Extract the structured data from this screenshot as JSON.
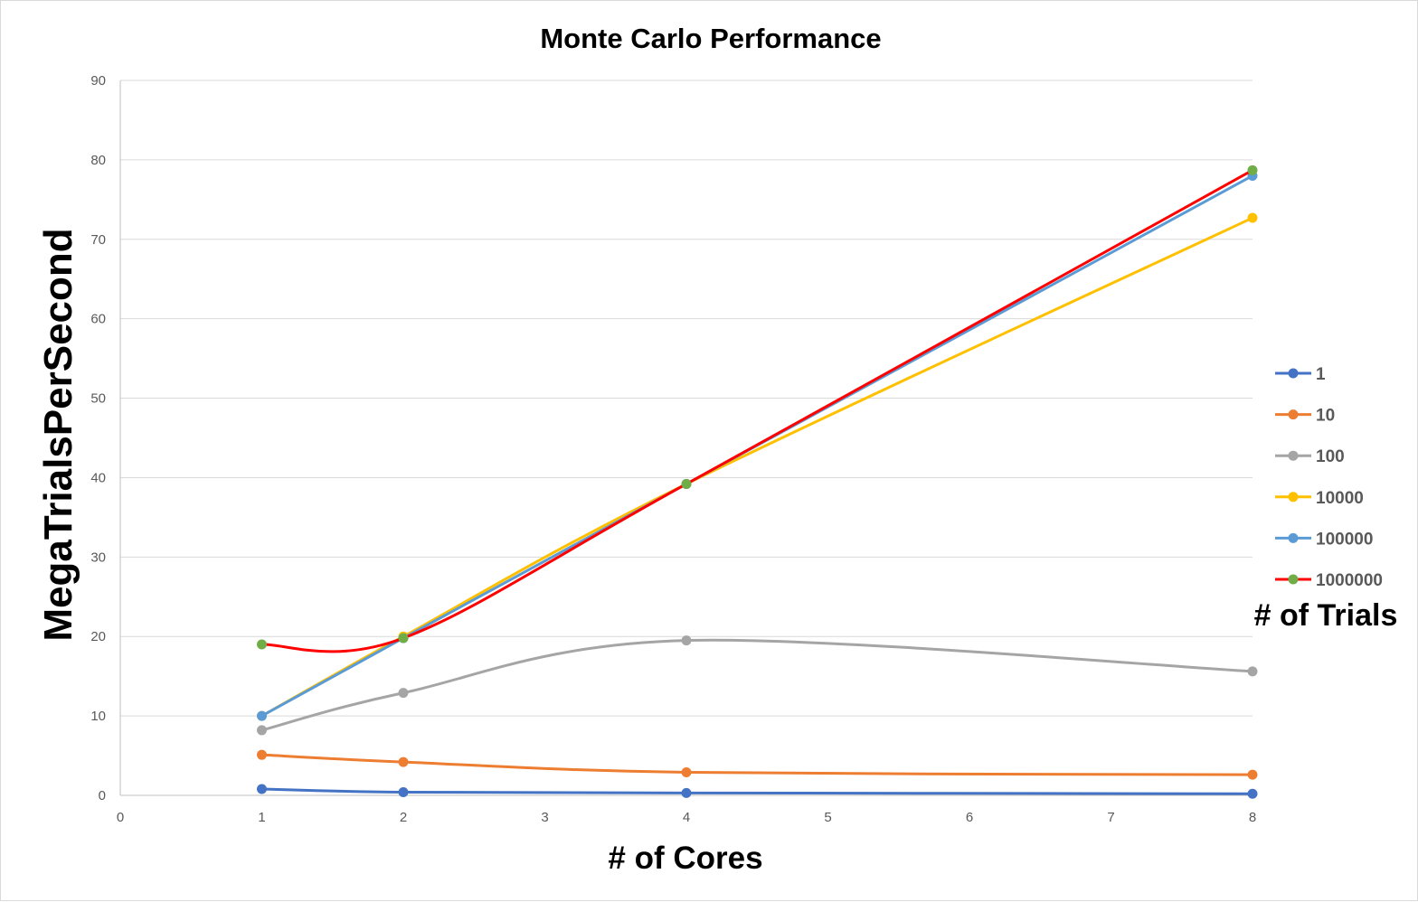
{
  "chart_data": {
    "type": "line",
    "title": "Monte Carlo Performance",
    "xlabel": "# of Cores",
    "ylabel": "MegaTrialsPerSecond",
    "xlim": [
      0,
      8
    ],
    "ylim": [
      0,
      90
    ],
    "x_ticks": [
      "0",
      "1",
      "2",
      "3",
      "4",
      "5",
      "6",
      "7",
      "8"
    ],
    "y_ticks": [
      "0",
      "10",
      "20",
      "30",
      "40",
      "50",
      "60",
      "70",
      "80",
      "90"
    ],
    "grid": "horizontal",
    "legend_position": "right",
    "legend_title": "# of Trials",
    "x": [
      1,
      2,
      4,
      8
    ],
    "series": [
      {
        "name": "1",
        "values": [
          0.8,
          0.4,
          0.3,
          0.2
        ],
        "color": "#4472C4",
        "line_color": "#4472C4"
      },
      {
        "name": "10",
        "values": [
          5.1,
          4.2,
          2.9,
          2.6
        ],
        "color": "#ED7D31",
        "line_color": "#ED7D31"
      },
      {
        "name": "100",
        "values": [
          8.2,
          12.9,
          19.5,
          15.6
        ],
        "color": "#A5A5A5",
        "line_color": "#A5A5A5"
      },
      {
        "name": "10000",
        "values": [
          10.0,
          20.0,
          39.2,
          72.7
        ],
        "color": "#FFC000",
        "line_color": "#FFC000"
      },
      {
        "name": "100000",
        "values": [
          10.0,
          19.8,
          39.2,
          78.0
        ],
        "color": "#5B9BD5",
        "line_color": "#5B9BD5"
      },
      {
        "name": "1000000",
        "values": [
          19.0,
          19.8,
          39.2,
          78.7
        ],
        "color": "#70AD47",
        "line_color": "#FF0000"
      }
    ]
  }
}
